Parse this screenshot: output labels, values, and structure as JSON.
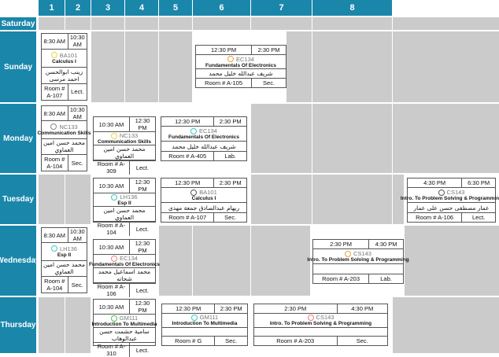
{
  "columns": [
    "1",
    "2",
    "3",
    "4",
    "5",
    "6",
    "7",
    "8"
  ],
  "days": [
    "Saturday",
    "Sunday",
    "Monday",
    "Tuesday",
    "Wednesday",
    "Thursday"
  ],
  "sessions": [
    {
      "day": "Sunday",
      "start": "8:30 AM",
      "end": "10:30 AM",
      "code": "BA101",
      "name": "Calculus I",
      "instructor": "زينب ابوالحسن احمد مرسى",
      "room": "Room # A-107",
      "type": "Lect.",
      "color": "#e8d640"
    },
    {
      "day": "Sunday",
      "start": "12:30 PM",
      "end": "2:30 PM",
      "code": "EC134",
      "name": "Fundamentals Of Electronics",
      "instructor": "شريف عبدالله خليل محمد",
      "room": "Room # A-105",
      "type": "Sec.",
      "color": "#f0a030"
    },
    {
      "day": "Monday",
      "start": "8:30 AM",
      "end": "10:30 AM",
      "code": "NC133",
      "name": "Communication Skills",
      "instructor": "محمد حسن امين العماوي",
      "room": "Room # A-104",
      "type": "Sec.",
      "color": "#888888"
    },
    {
      "day": "Monday",
      "start": "10:30 AM",
      "end": "12:30 PM",
      "code": "NC133",
      "name": "Communication Skills",
      "instructor": "محمد حسن امين العماوي",
      "room": "Room # A-309",
      "type": "Lect.",
      "color": "#e8d640"
    },
    {
      "day": "Monday",
      "start": "12:30 PM",
      "end": "2:30 PM",
      "code": "EC134",
      "name": "Fundamentals Of Electronics",
      "instructor": "شريف عبدالله خليل محمد",
      "room": "Room # A-405",
      "type": "Lab.",
      "color": "#40c8c8"
    },
    {
      "day": "Tuesday",
      "start": "10:30 AM",
      "end": "12:30 PM",
      "code": "LH136",
      "name": "Esp II",
      "instructor": "محمد حسن امين العماوي",
      "room": "Room # A-104",
      "type": "Lect.",
      "color": "#40c8c8"
    },
    {
      "day": "Tuesday",
      "start": "12:30 PM",
      "end": "2:30 PM",
      "code": "BA101",
      "name": "Calculus I",
      "instructor": "ريهام عبدالصادق جمعة مهدى",
      "room": "Room # A-107",
      "type": "Sec.",
      "color": "#555555"
    },
    {
      "day": "Tuesday",
      "start": "4:30 PM",
      "end": "6:30 PM",
      "code": "CS143",
      "name": "Intro. To Problem Solving & Programming",
      "instructor": "عمار مصطفى حسن على عمار",
      "room": "Room # A-106",
      "type": "Lect.",
      "color": "#555555"
    },
    {
      "day": "Wednesday",
      "start": "8:30 AM",
      "end": "10:30 AM",
      "code": "LH136",
      "name": "Esp II",
      "instructor": "محمد حسن امين العماوي",
      "room": "Room # A-104",
      "type": "Sec.",
      "color": "#40c8c8"
    },
    {
      "day": "Wednesday",
      "start": "10:30 AM",
      "end": "12:30 PM",
      "code": "EC134",
      "name": "Fundamentals Of Electronics",
      "instructor": "محمد اسماعيل محمد شحاته",
      "room": "Room # A-106",
      "type": "Lect.",
      "color": "#f08080"
    },
    {
      "day": "Wednesday",
      "start": "2:30 PM",
      "end": "4:30 PM",
      "code": "CS143",
      "name": "Intro. To Problem Solving & Programming",
      "instructor": "",
      "room": "Room # A-203",
      "type": "Lab.",
      "color": "#f0a030"
    },
    {
      "day": "Thursday",
      "start": "10:30 AM",
      "end": "12:30 PM",
      "code": "GM111",
      "name": "Introduction To Multimedia",
      "instructor": "سامية حشمت حسن عبدالوهاب",
      "room": "Room # A-310",
      "type": "Lect.",
      "color": "#50c850"
    },
    {
      "day": "Thursday",
      "start": "12:30 PM",
      "end": "2:30 PM",
      "code": "GM111",
      "name": "Introduction To Multimedia",
      "instructor": "",
      "room": "Room # G",
      "type": "Sec.",
      "color": "#40c8c8"
    },
    {
      "day": "Thursday",
      "start": "2:30 PM",
      "end": "4:30 PM",
      "code": "CS143",
      "name": "Intro. To Problem Solving & Programming",
      "instructor": "",
      "room": "Room # A-203",
      "type": "Sec.",
      "color": "#f08080"
    }
  ]
}
